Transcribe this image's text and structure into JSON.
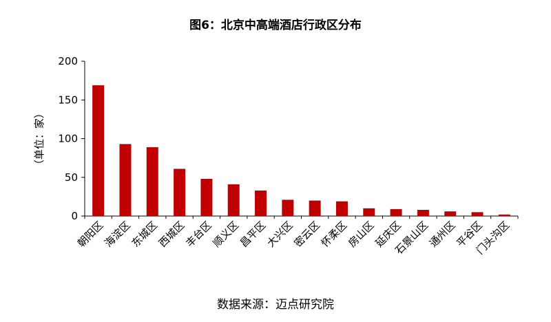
{
  "title": "图6：北京中高端酒店行政区分布",
  "source": "数据来源：迈点研究院",
  "colors": {
    "bar": "#c00000"
  },
  "chart_data": {
    "type": "bar",
    "title": "图6：北京中高端酒店行政区分布",
    "xlabel": "",
    "ylabel": "（单位：家）",
    "categories": [
      "朝阳区",
      "海淀区",
      "东城区",
      "西城区",
      "丰台区",
      "顺义区",
      "昌平区",
      "大兴区",
      "密云区",
      "怀柔区",
      "房山区",
      "延庆区",
      "石景山区",
      "通州区",
      "平谷区",
      "门头沟区"
    ],
    "values": [
      169,
      93,
      89,
      61,
      48,
      41,
      33,
      21,
      20,
      19,
      10,
      9,
      8,
      6,
      5,
      2
    ],
    "ylim": [
      0,
      200
    ],
    "yticks": [
      "0",
      "50",
      "100",
      "150",
      "200"
    ],
    "grid": false,
    "legend": "none"
  }
}
